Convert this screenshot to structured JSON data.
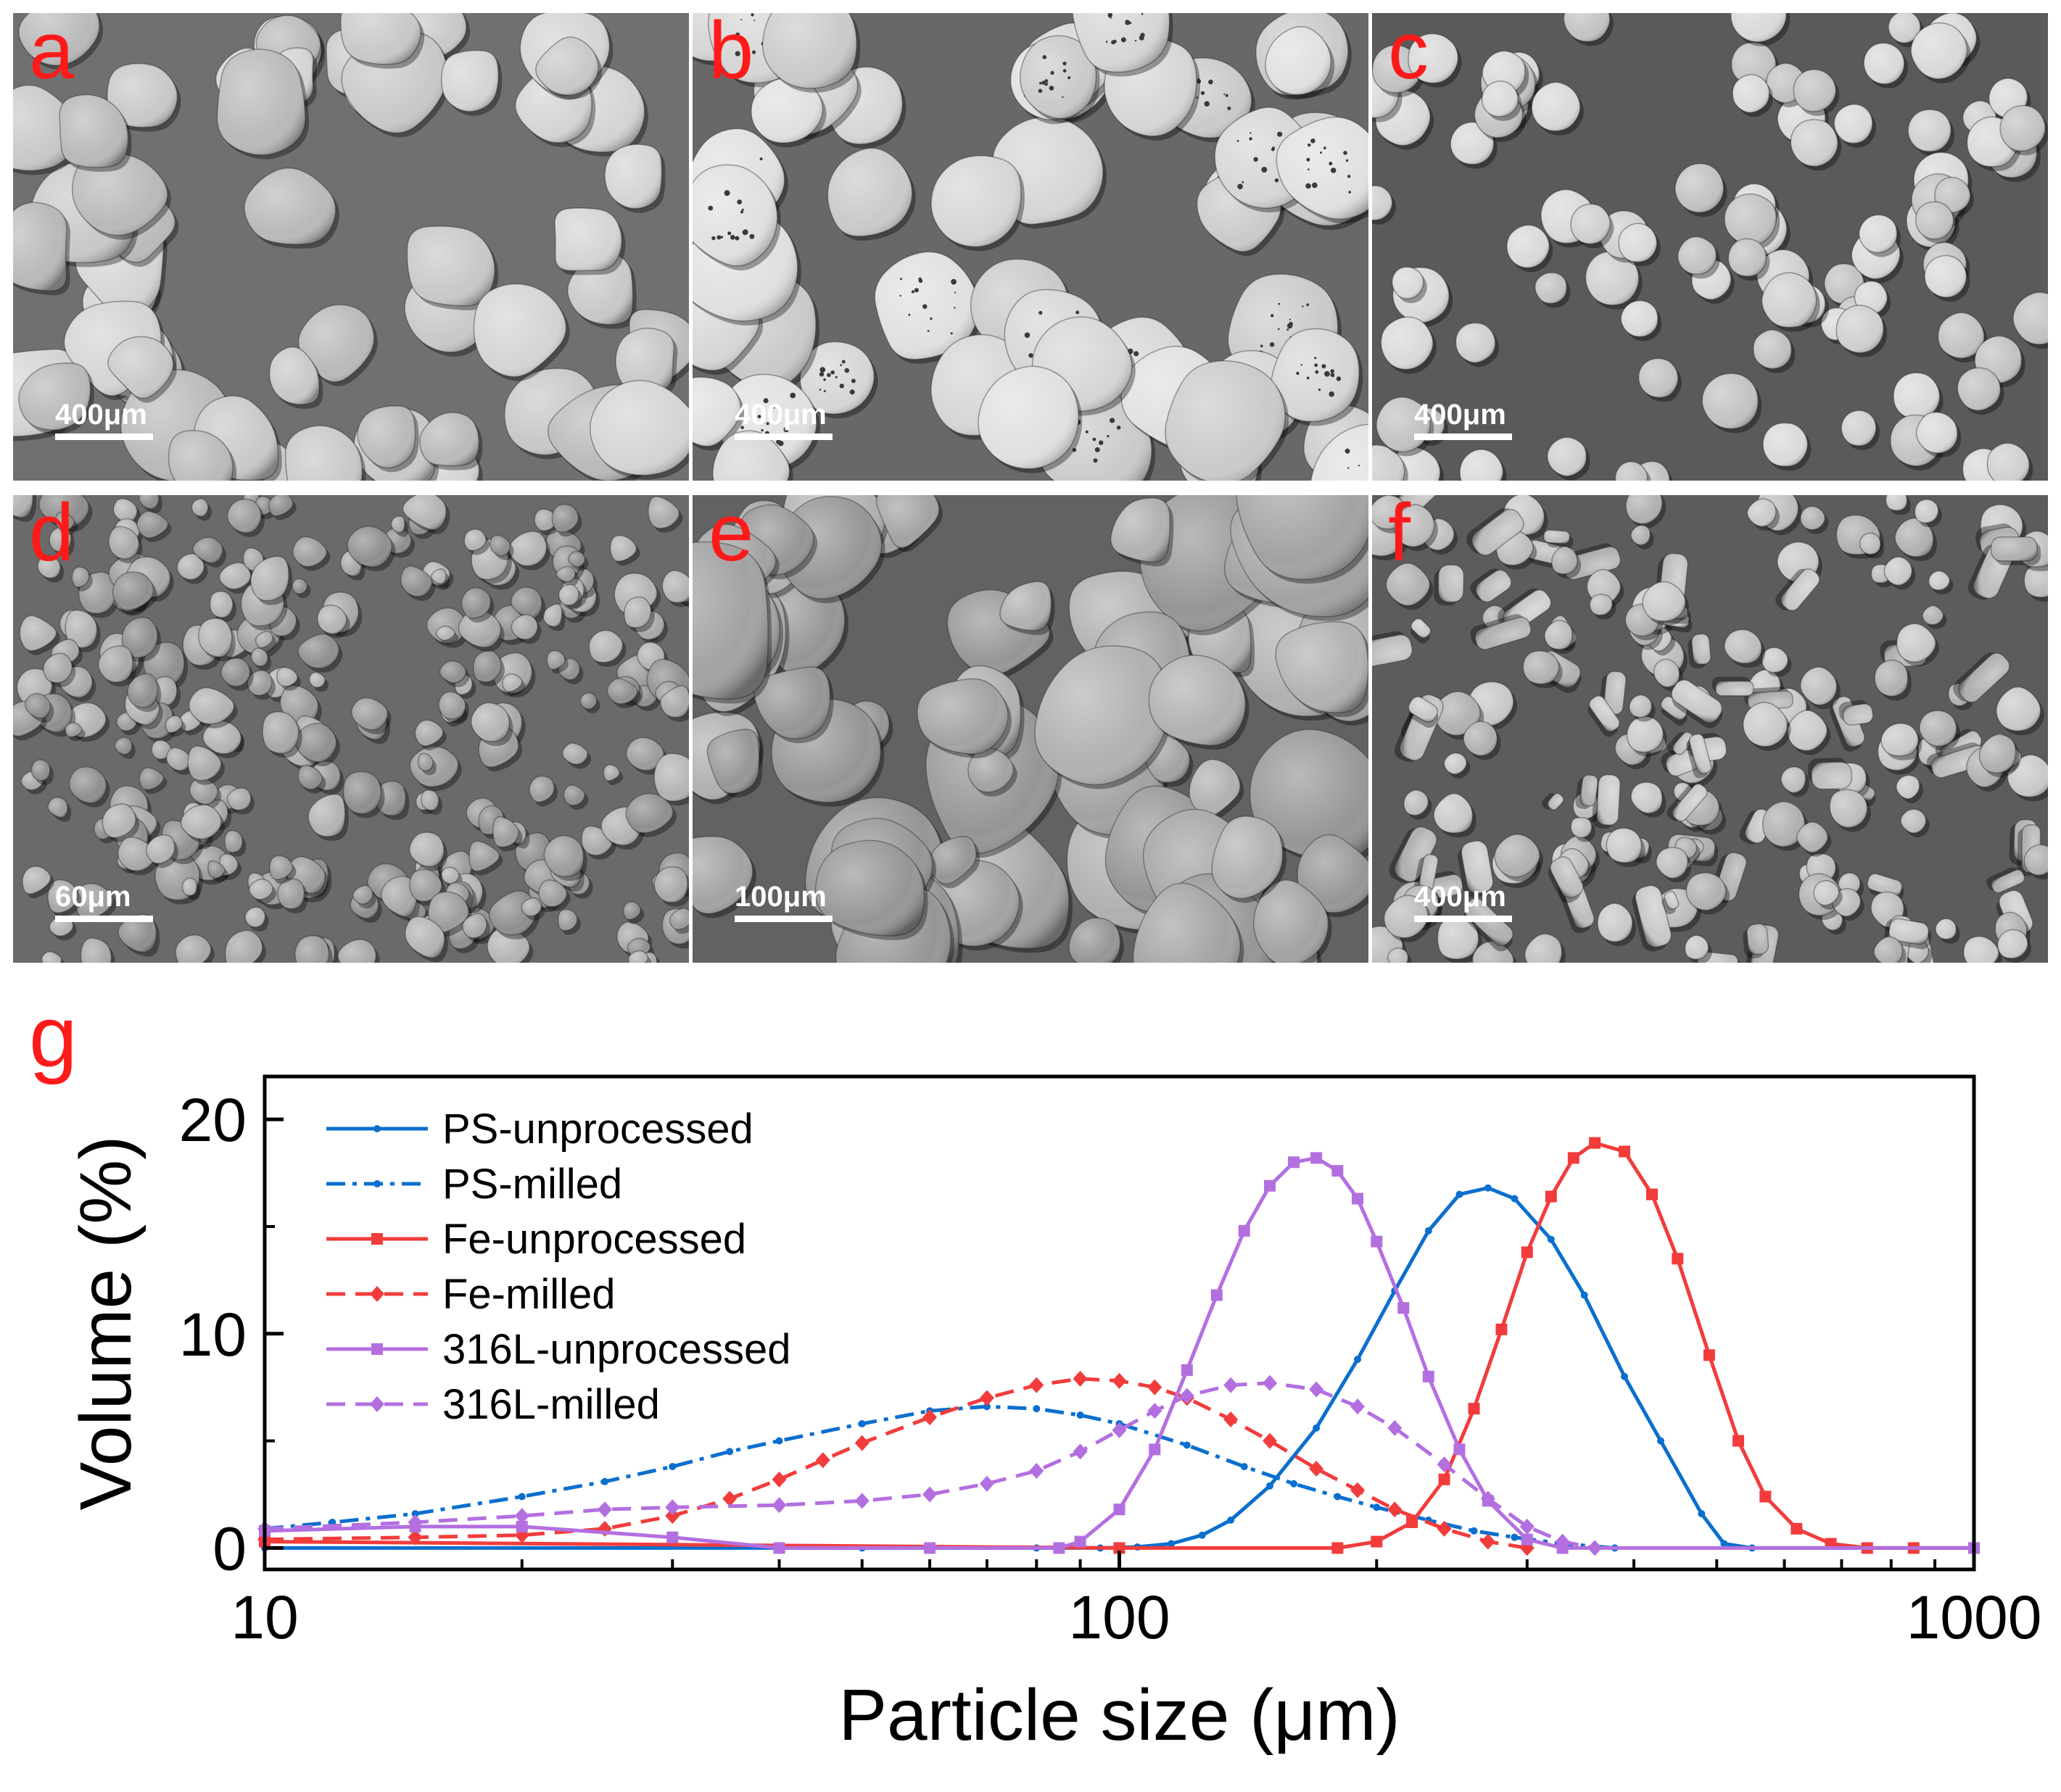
{
  "panels": [
    {
      "label": "a",
      "scale": "400μm",
      "style": "irregular-large"
    },
    {
      "label": "b",
      "scale": "400μm",
      "style": "rounded-large"
    },
    {
      "label": "c",
      "scale": "400μm",
      "style": "spherical"
    },
    {
      "label": "d",
      "scale": "60μm",
      "style": "fine-flakes"
    },
    {
      "label": "e",
      "scale": "100μm",
      "style": "large-flakes"
    },
    {
      "label": "f",
      "scale": "400μm",
      "style": "mixed-cylindrical"
    }
  ],
  "figure_label": "g",
  "colors": {
    "blue": "#0a6fce",
    "red": "#f23c3c",
    "purple": "#b36fe0",
    "panel_label": "#ff1a1a"
  },
  "chart_data": {
    "type": "line",
    "xlabel": "Particle size (μm)",
    "ylabel": "Volume (%)",
    "xscale": "log",
    "xlim": [
      10,
      1000
    ],
    "ylim": [
      -1,
      22
    ],
    "xticks": [
      10,
      100,
      1000
    ],
    "yticks": [
      0,
      10,
      20
    ],
    "grid": false,
    "legend_position": "top-left",
    "series": [
      {
        "name": "PS-unprocessed",
        "color": "#0a6fce",
        "dash": "solid",
        "marker": "dot",
        "x": [
          10,
          50,
          80,
          95,
          105,
          115,
          125,
          135,
          150,
          170,
          190,
          210,
          230,
          250,
          270,
          290,
          320,
          350,
          390,
          430,
          480,
          510,
          550,
          1000
        ],
        "y": [
          0,
          0,
          0,
          0,
          0.05,
          0.2,
          0.6,
          1.3,
          2.9,
          5.6,
          8.8,
          12.0,
          14.8,
          16.5,
          16.8,
          16.3,
          14.4,
          11.8,
          8.0,
          5.0,
          1.6,
          0.2,
          0,
          0
        ]
      },
      {
        "name": "PS-milled",
        "color": "#0a6fce",
        "dash": "dashdot",
        "marker": "dot",
        "x": [
          10,
          12,
          15,
          20,
          25,
          30,
          35,
          40,
          50,
          60,
          70,
          80,
          90,
          100,
          120,
          140,
          160,
          180,
          200,
          230,
          260,
          290,
          330,
          380
        ],
        "y": [
          0.9,
          1.2,
          1.6,
          2.4,
          3.1,
          3.8,
          4.5,
          5.0,
          5.8,
          6.4,
          6.6,
          6.5,
          6.2,
          5.8,
          4.8,
          3.8,
          3.0,
          2.4,
          1.9,
          1.3,
          0.8,
          0.5,
          0.2,
          0
        ]
      },
      {
        "name": "Fe-unprocessed",
        "color": "#f23c3c",
        "dash": "solid",
        "marker": "square",
        "x": [
          10,
          100,
          180,
          200,
          220,
          240,
          260,
          280,
          300,
          320,
          340,
          360,
          390,
          420,
          450,
          490,
          530,
          570,
          620,
          680,
          750,
          850,
          1000
        ],
        "y": [
          0.3,
          0,
          0,
          0.3,
          1.2,
          3.2,
          6.5,
          10.2,
          13.8,
          16.4,
          18.2,
          18.9,
          18.5,
          16.5,
          13.5,
          9.0,
          5.0,
          2.4,
          0.9,
          0.2,
          0,
          0,
          0
        ]
      },
      {
        "name": "Fe-milled",
        "color": "#f23c3c",
        "dash": "dashed",
        "marker": "diamond",
        "x": [
          10,
          15,
          20,
          25,
          30,
          35,
          40,
          45,
          50,
          60,
          70,
          80,
          90,
          100,
          110,
          120,
          135,
          150,
          170,
          190,
          210,
          240,
          270,
          300
        ],
        "y": [
          0.4,
          0.5,
          0.6,
          0.9,
          1.5,
          2.3,
          3.2,
          4.1,
          4.9,
          6.1,
          7.0,
          7.6,
          7.9,
          7.8,
          7.5,
          7.0,
          6.0,
          5.0,
          3.7,
          2.7,
          1.8,
          0.9,
          0.3,
          0
        ]
      },
      {
        "name": "316L-unprocessed",
        "color": "#b36fe0",
        "dash": "solid",
        "marker": "square",
        "x": [
          10,
          15,
          20,
          30,
          40,
          60,
          85,
          90,
          100,
          110,
          120,
          130,
          140,
          150,
          160,
          170,
          180,
          190,
          200,
          215,
          230,
          250,
          270,
          300,
          330,
          1000
        ],
        "y": [
          0.8,
          1.0,
          1.0,
          0.5,
          0,
          0,
          0,
          0.3,
          1.8,
          4.6,
          8.3,
          11.8,
          14.8,
          16.9,
          18.0,
          18.2,
          17.6,
          16.3,
          14.3,
          11.2,
          8.0,
          4.6,
          2.2,
          0.4,
          0,
          0
        ]
      },
      {
        "name": "316L-milled",
        "color": "#b36fe0",
        "dash": "dashed",
        "marker": "diamond",
        "x": [
          10,
          15,
          20,
          25,
          30,
          40,
          50,
          60,
          70,
          80,
          90,
          100,
          110,
          120,
          135,
          150,
          170,
          190,
          210,
          240,
          270,
          300,
          330,
          360
        ],
        "y": [
          0.9,
          1.2,
          1.5,
          1.8,
          1.9,
          2.0,
          2.2,
          2.5,
          3.0,
          3.6,
          4.5,
          5.5,
          6.4,
          7.1,
          7.6,
          7.7,
          7.4,
          6.6,
          5.6,
          3.9,
          2.3,
          1.0,
          0.3,
          0
        ]
      }
    ]
  }
}
